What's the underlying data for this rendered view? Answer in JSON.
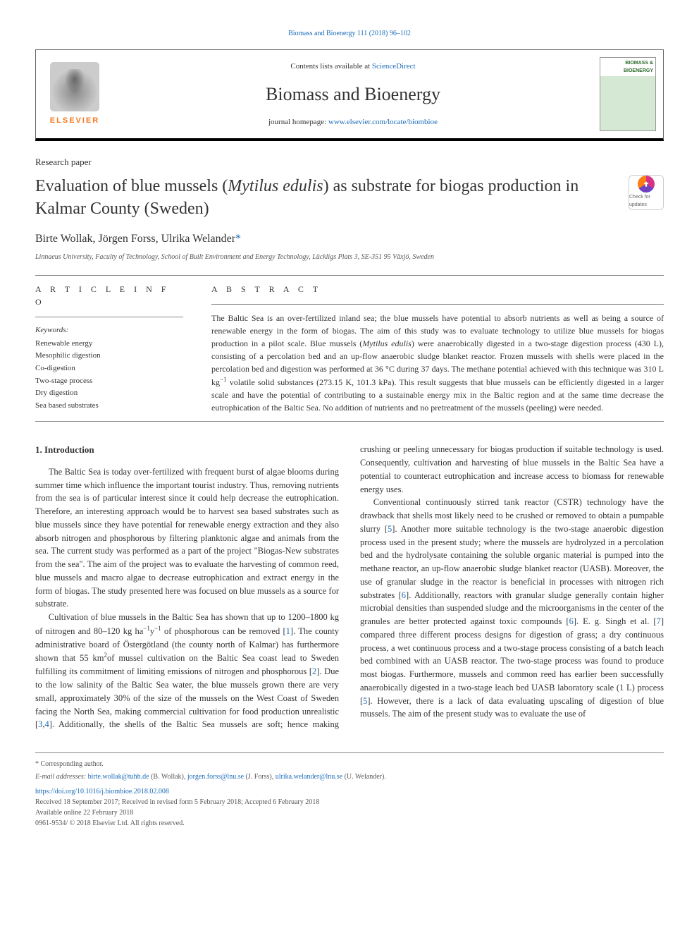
{
  "top_link": "Biomass and Bioenergy 111 (2018) 96–102",
  "header": {
    "elsevier_label": "ELSEVIER",
    "contents_prefix": "Contents lists available at ",
    "contents_link": "ScienceDirect",
    "journal_title": "Biomass and Bioenergy",
    "homepage_prefix": "journal homepage: ",
    "homepage_link": "www.elsevier.com/locate/biombioe",
    "cover_label": "BIOMASS & BIOENERGY"
  },
  "paper_type": "Research paper",
  "title_pre": "Evaluation of blue mussels (",
  "title_italic": "Mytilus edulis",
  "title_post": ") as substrate for biogas production in Kalmar County (Sweden)",
  "updates_label": "Check for updates",
  "authors": "Birte Wollak, Jörgen Forss, Ulrika Welander",
  "corr_symbol": "*",
  "affiliation": "Linnaeus University, Faculty of Technology, School of Built Environment and Energy Technology, Lückligs Plats 3, SE-351 95 Växjö, Sweden",
  "article_info_head": "A R T I C L E  I N F O",
  "abstract_head": "A B S T R A C T",
  "keywords_head": "Keywords:",
  "keywords": [
    "Renewable energy",
    "Mesophilic digestion",
    "Co-digestion",
    "Two-stage process",
    "Dry digestion",
    "Sea based substrates"
  ],
  "abstract_1": "The Baltic Sea is an over-fertilized inland sea; the blue mussels have potential to absorb nutrients as well as being a source of renewable energy in the form of biogas. The aim of this study was to evaluate technology to utilize blue mussels for biogas production in a pilot scale. Blue mussels (",
  "abstract_italic": "Mytilus edulis",
  "abstract_2": ") were anaerobically digested in a two-stage digestion process (430 L), consisting of a percolation bed and an up-flow anaerobic sludge blanket reactor. Frozen mussels with shells were placed in the percolation bed and digestion was performed at 36 °C during 37 days. The methane potential achieved with this technique was 310 L kg",
  "abstract_sup1": "−1",
  "abstract_3": " volatile solid substances (273.15 K, 101.3 kPa). This result suggests that blue mussels can be efficiently digested in a larger scale and have the potential of contributing to a sustainable energy mix in the Baltic region and at the same time decrease the eutrophication of the Baltic Sea. No addition of nutrients and no pretreatment of the mussels (peeling) were needed.",
  "intro_head": "1. Introduction",
  "intro_p1": "The Baltic Sea is today over-fertilized with frequent burst of algae blooms during summer time which influence the important tourist industry. Thus, removing nutrients from the sea is of particular interest since it could help decrease the eutrophication. Therefore, an interesting approach would be to harvest sea based substrates such as blue mussels since they have potential for renewable energy extraction and they also absorb nitrogen and phosphorous by filtering planktonic algae and animals from the sea. The current study was performed as a part of the project \"Biogas-New substrates from the sea\". The aim of the project was to evaluate the harvesting of common reed, blue mussels and macro algae to decrease eutrophication and extract energy in the form of biogas. The study presented here was focused on blue mussels as a source for substrate.",
  "intro_p2_a": "Cultivation of blue mussels in the Baltic Sea has shown that up to 1200–1800 kg of nitrogen and 80–120 kg ha",
  "intro_p2_sup1": "−1",
  "intro_p2_b": "y",
  "intro_p2_sup2": "−1",
  "intro_p2_c": " of phosphorous can be removed [",
  "intro_p2_cite1": "1",
  "intro_p2_d": "]. The county administrative board of Östergötland (the county north of Kalmar) has furthermore shown that 55 km",
  "intro_p2_sup3": "2",
  "intro_p2_e": "of mussel cultivation on the Baltic Sea coast lead to Sweden fulfilling its commitment of limiting emissions of nitrogen and phosphorous [",
  "intro_p2_cite2": "2",
  "intro_p2_f": "]. Due to the low salinity of the Baltic Sea water, the blue mussels grown there are very small, approximately 30% of the size of the mussels on the West Coast of Sweden facing the North Sea, making commercial cultivation for food production unrealistic [",
  "intro_p2_cite3": "3",
  "intro_p2_g": ",",
  "intro_p2_cite4": "4",
  "intro_p2_h": "]. Additionally, the shells of the Baltic Sea mussels are soft; hence making crushing or peeling unnecessary for biogas production if suitable technology is used. Consequently, cultivation and harvesting of blue mussels in the Baltic Sea have a potential to counteract eutrophication and increase access to biomass for renewable energy uses.",
  "intro_p3_a": "Conventional continuously stirred tank reactor (CSTR) technology have the drawback that shells most likely need to be crushed or removed to obtain a pumpable slurry [",
  "intro_p3_cite5": "5",
  "intro_p3_b": "]. Another more suitable technology is the two-stage anaerobic digestion process used in the present study; where the mussels are hydrolyzed in a percolation bed and the hydrolysate containing the soluble organic material is pumped into the methane reactor, an up-flow anaerobic sludge blanket reactor (UASB). Moreover, the use of granular sludge in the reactor is beneficial in processes with nitrogen rich substrates [",
  "intro_p3_cite6": "6",
  "intro_p3_c": "]. Additionally, reactors with granular sludge generally contain higher microbial densities than suspended sludge and the microorganisms in the center of the granules are better protected against toxic compounds [",
  "intro_p3_cite6b": "6",
  "intro_p3_d": "]. E. g. Singh et al. [",
  "intro_p3_cite7": "7",
  "intro_p3_e": "] compared three different process designs for digestion of grass; a dry continuous process, a wet continuous process and a two-stage process consisting of a batch leach bed combined with an UASB reactor. The two-stage process was found to produce most biogas. Furthermore, mussels and common reed has earlier been successfully anaerobically digested in a two-stage leach bed UASB laboratory scale (1 L) process [",
  "intro_p3_cite5b": "5",
  "intro_p3_f": "]. However, there is a lack of data evaluating upscaling of digestion of blue mussels. The aim of the present study was to evaluate the use of",
  "footer": {
    "corr_label": "* Corresponding author.",
    "emails_label": "E-mail addresses: ",
    "email1": "birte.wollak@tuhh.de",
    "email1_name": " (B. Wollak), ",
    "email2": "jorgen.forss@lnu.se",
    "email2_name": " (J. Forss), ",
    "email3": "ulrika.welander@lnu.se",
    "email3_name": " (U. Welander).",
    "doi": "https://doi.org/10.1016/j.biombioe.2018.02.008",
    "received": "Received 18 September 2017; Received in revised form 5 February 2018; Accepted 6 February 2018",
    "available": "Available online 22 February 2018",
    "copyright": "0961-9534/ © 2018 Elsevier Ltd. All rights reserved."
  },
  "colors": {
    "link": "#1a6bb8",
    "text": "#333333",
    "elsevier_orange": "#f47920",
    "cover_green": "#2a6b2a"
  }
}
